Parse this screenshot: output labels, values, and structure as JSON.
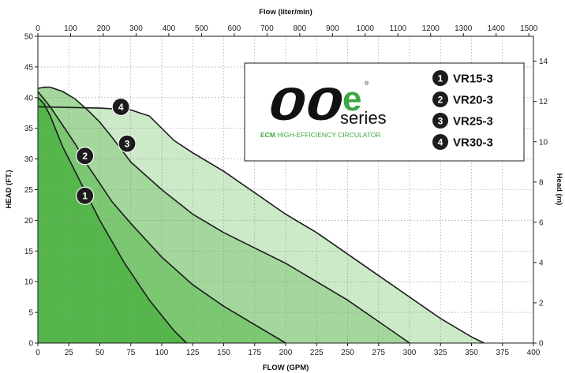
{
  "chart_data": {
    "type": "area",
    "title": "",
    "xlabel": "FLOW (GPM)",
    "ylabel": "HEAD (FT.)",
    "x2label": "Flow (liter/min)",
    "y2label": "Head (m)",
    "xlim": [
      0,
      400
    ],
    "ylim": [
      0,
      50
    ],
    "x2lim": [
      0,
      1514
    ],
    "y2lim": [
      0,
      15.24
    ],
    "xticks": [
      0,
      25,
      50,
      75,
      100,
      125,
      150,
      175,
      200,
      225,
      250,
      275,
      300,
      325,
      350,
      375,
      400
    ],
    "yticks": [
      0,
      5,
      10,
      15,
      20,
      25,
      30,
      35,
      40,
      45,
      50
    ],
    "x2ticks": [
      0,
      100,
      200,
      300,
      400,
      500,
      600,
      700,
      800,
      900,
      1000,
      1100,
      1200,
      1300,
      1400,
      1500
    ],
    "y2ticks": [
      0,
      2,
      4,
      6,
      8,
      10,
      12,
      14
    ],
    "grid": true,
    "series": [
      {
        "name": "VR30-3",
        "color": "#cce9c8",
        "x": [
          0,
          50,
          75,
          90,
          100,
          110,
          125,
          150,
          175,
          200,
          225,
          250,
          275,
          300,
          325,
          350,
          360
        ],
        "y": [
          38.5,
          38.3,
          38,
          37,
          35,
          33,
          31,
          28,
          24.5,
          21,
          18,
          14.5,
          11,
          7.5,
          4,
          1,
          0
        ]
      },
      {
        "name": "VR25-3",
        "color": "#a4d79c",
        "x": [
          0,
          5,
          10,
          20,
          30,
          40,
          50,
          60,
          75,
          100,
          125,
          150,
          175,
          200,
          225,
          250,
          275,
          300
        ],
        "y": [
          41.5,
          41.7,
          41.7,
          41,
          39.8,
          38,
          36,
          33.5,
          29.5,
          25,
          21,
          18,
          15.5,
          13,
          10,
          7,
          3.5,
          0
        ]
      },
      {
        "name": "VR20-3",
        "color": "#7cc872",
        "x": [
          0,
          10,
          20,
          30,
          40,
          50,
          60,
          75,
          100,
          125,
          150,
          175,
          200
        ],
        "y": [
          41,
          38.5,
          35.5,
          32.5,
          29,
          26,
          23,
          19.5,
          14,
          9.5,
          6,
          3,
          0
        ]
      },
      {
        "name": "VR15-3",
        "color": "#55b74b",
        "x": [
          0,
          5,
          10,
          15,
          20,
          25,
          30,
          40,
          50,
          60,
          70,
          80,
          90,
          100,
          110,
          120
        ],
        "y": [
          40,
          39,
          37,
          34.5,
          32,
          30,
          28,
          24,
          20,
          16.5,
          13,
          10,
          7,
          4.5,
          2,
          0
        ]
      }
    ],
    "badges": [
      {
        "num": "1",
        "x": 38,
        "y": 24
      },
      {
        "num": "2",
        "x": 38,
        "y": 30.5
      },
      {
        "num": "3",
        "x": 72,
        "y": 32.5
      },
      {
        "num": "4",
        "x": 67,
        "y": 38.5
      }
    ]
  },
  "logo": {
    "mark": "00",
    "letter": "e",
    "registered": "®",
    "series_word": "series",
    "tagline_bold": "ECM",
    "tagline_rest": " HIGH-EFFICIENCY CIRCULATOR"
  },
  "legend": [
    {
      "num": "1",
      "label": "VR15-3"
    },
    {
      "num": "2",
      "label": "VR20-3"
    },
    {
      "num": "3",
      "label": "VR25-3"
    },
    {
      "num": "4",
      "label": "VR30-3"
    }
  ]
}
